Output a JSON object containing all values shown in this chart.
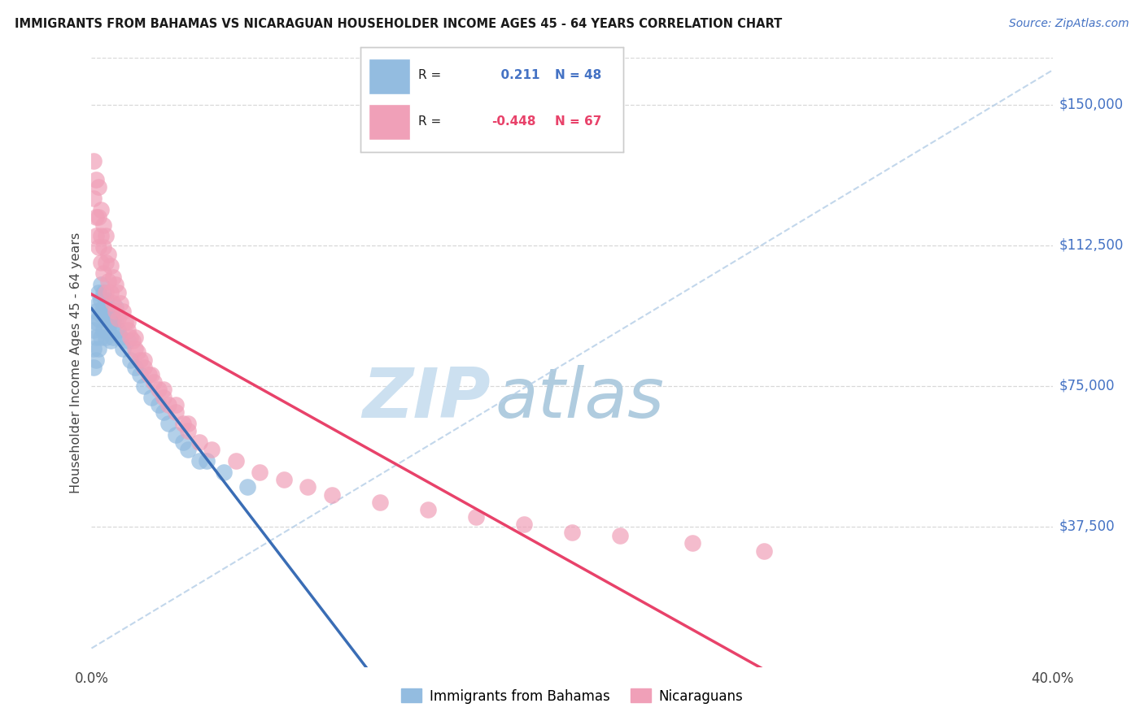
{
  "title": "IMMIGRANTS FROM BAHAMAS VS NICARAGUAN HOUSEHOLDER INCOME AGES 45 - 64 YEARS CORRELATION CHART",
  "source": "Source: ZipAtlas.com",
  "ylabel": "Householder Income Ages 45 - 64 years",
  "ytick_labels": [
    "$37,500",
    "$75,000",
    "$112,500",
    "$150,000"
  ],
  "ytick_values": [
    37500,
    75000,
    112500,
    150000
  ],
  "y_min": 0,
  "y_max": 162500,
  "x_min": 0.0,
  "x_max": 0.4,
  "R_bahamas": 0.211,
  "N_bahamas": 48,
  "R_nicaragua": -0.448,
  "N_nicaragua": 67,
  "color_bahamas": "#93bce0",
  "color_nicaragua": "#f0a0b8",
  "line_color_bahamas": "#3a6db5",
  "line_color_nicaragua": "#e8426a",
  "dashed_line_color": "#b8d0e8",
  "watermark_zip_color": "#ccdff0",
  "watermark_atlas_color": "#b8d0e8",
  "background_color": "#ffffff",
  "grid_color": "#d8d8d8",
  "bahamas_x": [
    0.001,
    0.001,
    0.001,
    0.002,
    0.002,
    0.002,
    0.002,
    0.003,
    0.003,
    0.003,
    0.003,
    0.004,
    0.004,
    0.004,
    0.004,
    0.005,
    0.005,
    0.005,
    0.006,
    0.006,
    0.006,
    0.007,
    0.007,
    0.008,
    0.008,
    0.009,
    0.009,
    0.01,
    0.01,
    0.011,
    0.012,
    0.013,
    0.015,
    0.016,
    0.018,
    0.02,
    0.022,
    0.025,
    0.028,
    0.03,
    0.032,
    0.035,
    0.04,
    0.048,
    0.055,
    0.065,
    0.038,
    0.045
  ],
  "bahamas_y": [
    90000,
    85000,
    80000,
    95000,
    92000,
    88000,
    82000,
    100000,
    97000,
    93000,
    85000,
    102000,
    98000,
    94000,
    88000,
    100000,
    96000,
    90000,
    98000,
    94000,
    88000,
    95000,
    90000,
    92000,
    87000,
    93000,
    88000,
    96000,
    92000,
    90000,
    88000,
    85000,
    87000,
    82000,
    80000,
    78000,
    75000,
    72000,
    70000,
    68000,
    65000,
    62000,
    58000,
    55000,
    52000,
    48000,
    60000,
    55000
  ],
  "nicaragua_x": [
    0.001,
    0.001,
    0.002,
    0.002,
    0.002,
    0.003,
    0.003,
    0.003,
    0.004,
    0.004,
    0.004,
    0.005,
    0.005,
    0.005,
    0.006,
    0.006,
    0.006,
    0.007,
    0.007,
    0.008,
    0.008,
    0.009,
    0.009,
    0.01,
    0.01,
    0.011,
    0.011,
    0.012,
    0.013,
    0.014,
    0.015,
    0.016,
    0.017,
    0.018,
    0.019,
    0.02,
    0.022,
    0.024,
    0.026,
    0.028,
    0.03,
    0.032,
    0.035,
    0.038,
    0.04,
    0.045,
    0.05,
    0.06,
    0.07,
    0.08,
    0.09,
    0.1,
    0.12,
    0.14,
    0.16,
    0.18,
    0.2,
    0.22,
    0.25,
    0.28,
    0.015,
    0.018,
    0.022,
    0.025,
    0.03,
    0.035,
    0.04
  ],
  "nicaragua_y": [
    135000,
    125000,
    130000,
    120000,
    115000,
    128000,
    120000,
    112000,
    122000,
    115000,
    108000,
    118000,
    112000,
    105000,
    115000,
    108000,
    100000,
    110000,
    103000,
    107000,
    100000,
    104000,
    97000,
    102000,
    95000,
    100000,
    93000,
    97000,
    95000,
    92000,
    90000,
    88000,
    87000,
    85000,
    84000,
    82000,
    80000,
    78000,
    76000,
    74000,
    72000,
    70000,
    68000,
    65000,
    63000,
    60000,
    58000,
    55000,
    52000,
    50000,
    48000,
    46000,
    44000,
    42000,
    40000,
    38000,
    36000,
    35000,
    33000,
    31000,
    92000,
    88000,
    82000,
    78000,
    74000,
    70000,
    65000
  ]
}
